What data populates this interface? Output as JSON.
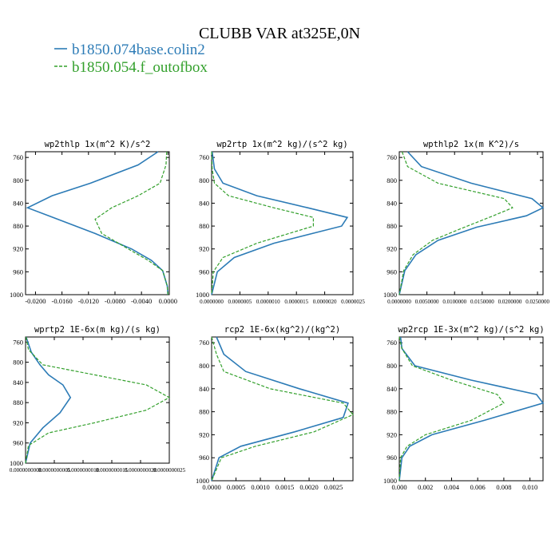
{
  "figure": {
    "title": "CLUBB VAR at325E,0N",
    "legend": [
      {
        "label": "b1850.074base.colin2",
        "color": "#2c7bb6",
        "style": "solid"
      },
      {
        "label": "b1850.054.f_outofbox",
        "color": "#33a02c",
        "style": "dashed"
      }
    ]
  },
  "chart_data": [
    {
      "type": "line",
      "title": "wp2thlp  1x(m^2 K)/s^2",
      "ylim": [
        1000,
        750
      ],
      "yticks": [
        "760",
        "800",
        "840",
        "880",
        "920",
        "960",
        "1000"
      ],
      "xlim": [
        -0.0215,
        0.0002
      ],
      "xticks": [
        "-0.0200",
        "-0.0160",
        "-0.0120",
        "-0.0080",
        "-0.0040",
        "0.0000"
      ],
      "xtick_values": [
        -0.02,
        -0.016,
        -0.012,
        -0.008,
        -0.004,
        0.0
      ],
      "series": [
        {
          "name": "b1850.074base.colin2",
          "x": [
            -0.0015,
            -0.0045,
            -0.0117,
            -0.0175,
            -0.0212,
            -0.0178,
            -0.011,
            -0.0055,
            -0.0025,
            -0.0008,
            -0.0001,
            0.0
          ],
          "y": [
            750,
            773,
            805,
            827,
            848,
            863,
            893,
            920,
            940,
            958,
            985,
            1000
          ]
        },
        {
          "name": "b1850.054.f_outofbox",
          "x": [
            -0.0002,
            -0.0003,
            -0.0012,
            -0.0045,
            -0.0085,
            -0.011,
            -0.01,
            -0.006,
            -0.003,
            -0.0008,
            -0.0001,
            0.0
          ],
          "y": [
            750,
            773,
            805,
            827,
            848,
            868,
            893,
            920,
            940,
            958,
            985,
            1000
          ]
        }
      ]
    },
    {
      "type": "line",
      "title": "wp2rtp  1x(m^2 kg)/(s^2 kg)",
      "ylim": [
        1000,
        750
      ],
      "yticks": [
        "760",
        "800",
        "840",
        "880",
        "920",
        "960",
        "1000"
      ],
      "xlim": [
        0.0,
        2.5e-06
      ],
      "xticks": [
        "0.0000000",
        "0.0000005",
        "0.0000010",
        "0.0000015",
        "0.0000020",
        "0.0000025"
      ],
      "xtick_values": [
        0.0,
        5e-07,
        1e-06,
        1.5e-06,
        2e-06,
        2.5e-06
      ],
      "series": [
        {
          "name": "b1850.074base.colin2",
          "x": [
            1e-08,
            5e-08,
            2e-07,
            8e-07,
            1.7e-06,
            2.4e-06,
            2.3e-06,
            1.1e-06,
            4e-07,
            1e-07,
            0.0
          ],
          "y": [
            750,
            780,
            805,
            827,
            848,
            865,
            880,
            910,
            935,
            960,
            1000
          ]
        },
        {
          "name": "b1850.054.f_outofbox",
          "x": [
            0.0,
            1e-08,
            5e-08,
            3e-07,
            1.1e-06,
            1.8e-06,
            1.8e-06,
            8e-07,
            2e-07,
            3e-08,
            0.0
          ],
          "y": [
            750,
            780,
            805,
            827,
            848,
            865,
            880,
            910,
            935,
            960,
            1000
          ]
        }
      ]
    },
    {
      "type": "line",
      "title": "wpthlp2  1x(m K^2)/s",
      "ylim": [
        1000,
        750
      ],
      "yticks": [
        "760",
        "800",
        "840",
        "880",
        "920",
        "960",
        "1000"
      ],
      "xlim": [
        0.0,
        0.026
      ],
      "xticks": [
        "0.0000000",
        "0.0050000",
        "0.0100000",
        "0.0150000",
        "0.0200000",
        "0.0250000"
      ],
      "xtick_values": [
        0.0,
        0.005,
        0.01,
        0.015,
        0.02,
        0.025
      ],
      "series": [
        {
          "name": "b1850.074base.colin2",
          "x": [
            0.0015,
            0.004,
            0.013,
            0.024,
            0.026,
            0.023,
            0.014,
            0.007,
            0.003,
            0.001,
            0.0
          ],
          "y": [
            750,
            776,
            805,
            832,
            848,
            862,
            882,
            905,
            930,
            958,
            1000
          ]
        },
        {
          "name": "b1850.054.f_outofbox",
          "x": [
            0.0005,
            0.0015,
            0.007,
            0.019,
            0.0205,
            0.017,
            0.011,
            0.006,
            0.0025,
            0.0008,
            0.0
          ],
          "y": [
            750,
            776,
            805,
            832,
            848,
            862,
            885,
            905,
            930,
            958,
            1000
          ]
        }
      ]
    },
    {
      "type": "line",
      "title": "wprtp2  1E-6x(m kg)/(s kg)",
      "ylim": [
        1000,
        750
      ],
      "yticks": [
        "760",
        "800",
        "840",
        "880",
        "920",
        "960",
        "1000"
      ],
      "xlim": [
        0.0,
        2.5e-09
      ],
      "xticks": [
        "0.0000000000",
        "0.0000000005",
        "0.0000000010",
        "0.0000000015",
        "0.0000000020",
        "0.0000000025"
      ],
      "xtick_values": [
        0.0,
        5e-10,
        1e-09,
        1.5e-09,
        2e-09,
        2.5e-09
      ],
      "series": [
        {
          "name": "b1850.074base.colin2",
          "x": [
            1e-11,
            1e-10,
            2.5e-10,
            4e-10,
            6.5e-10,
            7.8e-10,
            6e-10,
            3e-10,
            8e-11,
            0.0
          ],
          "y": [
            750,
            780,
            805,
            825,
            845,
            870,
            900,
            930,
            960,
            1000
          ]
        },
        {
          "name": "b1850.054.f_outofbox",
          "x": [
            1e-11,
            5e-11,
            3e-10,
            1.2e-09,
            2.1e-09,
            2.5e-09,
            2.1e-09,
            1.2e-09,
            4e-10,
            5e-11,
            0.0
          ],
          "y": [
            750,
            775,
            805,
            825,
            845,
            870,
            895,
            920,
            940,
            965,
            1000
          ]
        }
      ]
    },
    {
      "type": "line",
      "title": "rcp2  1E-6x(kg^2)/(kg^2)",
      "ylim": [
        1000,
        750
      ],
      "yticks": [
        "760",
        "800",
        "840",
        "880",
        "920",
        "960",
        "1000"
      ],
      "xlim": [
        0.0,
        0.0029
      ],
      "xticks": [
        "0.0000",
        "0.0005",
        "0.0010",
        "0.0015",
        "0.0020",
        "0.0025"
      ],
      "xtick_values": [
        0.0,
        0.0005,
        0.001,
        0.0015,
        0.002,
        0.0025
      ],
      "series": [
        {
          "name": "b1850.074base.colin2",
          "x": [
            0.0001,
            0.00025,
            0.0007,
            0.0018,
            0.0028,
            0.0027,
            0.0017,
            0.0006,
            0.00015,
            0.0
          ],
          "y": [
            750,
            780,
            810,
            840,
            865,
            890,
            915,
            940,
            960,
            1000
          ]
        },
        {
          "name": "b1850.054.f_outofbox",
          "x": [
            0.0,
            0.0001,
            0.00025,
            0.0012,
            0.0027,
            0.0029,
            0.0021,
            0.0009,
            0.0002,
            0.0
          ],
          "y": [
            750,
            780,
            810,
            840,
            865,
            885,
            915,
            940,
            960,
            1000
          ]
        }
      ]
    },
    {
      "type": "line",
      "title": "wp2rcp  1E-3x(m^2 kg)/(s^2 kg)",
      "ylim": [
        1000,
        750
      ],
      "yticks": [
        "760",
        "800",
        "840",
        "880",
        "920",
        "960",
        "1000"
      ],
      "xlim": [
        0.0,
        0.011
      ],
      "xticks": [
        "0.000",
        "0.002",
        "0.004",
        "0.006",
        "0.008",
        "0.010"
      ],
      "xtick_values": [
        0.0,
        0.002,
        0.004,
        0.006,
        0.008,
        0.01
      ],
      "series": [
        {
          "name": "b1850.074base.colin2",
          "x": [
            0.0001,
            0.0002,
            0.0012,
            0.0055,
            0.0105,
            0.011,
            0.0065,
            0.0025,
            0.0008,
            0.0002,
            0.0
          ],
          "y": [
            750,
            770,
            800,
            825,
            850,
            865,
            895,
            920,
            940,
            960,
            1000
          ]
        },
        {
          "name": "b1850.054.f_outofbox",
          "x": [
            0.0,
            0.0002,
            0.001,
            0.004,
            0.0075,
            0.008,
            0.0055,
            0.002,
            0.0006,
            0.0001,
            0.0
          ],
          "y": [
            750,
            770,
            800,
            825,
            850,
            865,
            895,
            920,
            940,
            960,
            1000
          ]
        }
      ]
    }
  ]
}
